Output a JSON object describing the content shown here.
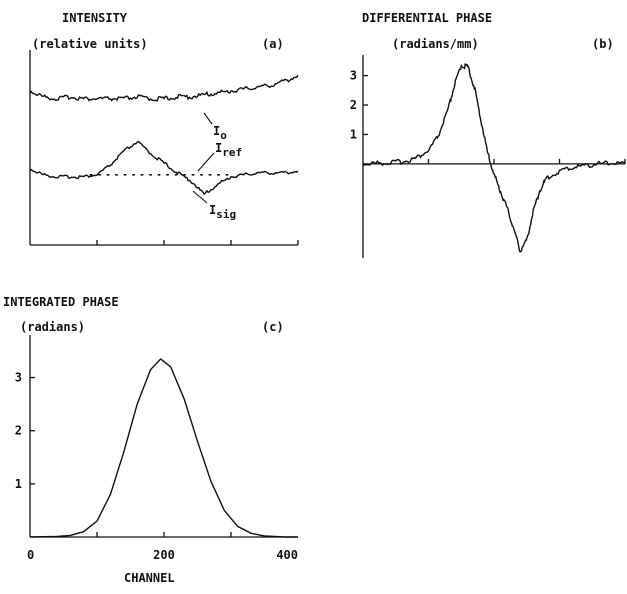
{
  "chart_data": [
    {
      "id": "a",
      "type": "line",
      "title": "INTENSITY",
      "ylabel": "(relative units)",
      "panel_label": "(a)",
      "x_ticks": [
        100,
        200,
        300,
        400
      ],
      "xlim": [
        0,
        400
      ],
      "ylim": [
        0,
        1
      ],
      "series": [
        {
          "name": "I",
          "subscript": "o",
          "x": [
            0,
            20,
            40,
            60,
            80,
            100,
            120,
            140,
            160,
            180,
            200,
            220,
            240,
            260,
            280,
            300,
            320,
            340,
            360,
            380,
            400
          ],
          "y": [
            0.79,
            0.76,
            0.75,
            0.76,
            0.75,
            0.75,
            0.75,
            0.75,
            0.76,
            0.75,
            0.75,
            0.76,
            0.76,
            0.77,
            0.78,
            0.79,
            0.8,
            0.81,
            0.82,
            0.84,
            0.87
          ]
        },
        {
          "name": "I",
          "subscript": "sig",
          "x": [
            0,
            20,
            40,
            60,
            80,
            100,
            120,
            140,
            160,
            180,
            200,
            220,
            240,
            260,
            280,
            300,
            320,
            340,
            360,
            380,
            400
          ],
          "y": [
            0.39,
            0.36,
            0.35,
            0.35,
            0.35,
            0.36,
            0.41,
            0.48,
            0.53,
            0.47,
            0.42,
            0.37,
            0.33,
            0.26,
            0.31,
            0.35,
            0.36,
            0.37,
            0.37,
            0.37,
            0.38
          ]
        },
        {
          "name": "I",
          "subscript": "ref",
          "style": "dotted",
          "x": [
            90,
            120,
            140,
            160,
            180,
            200,
            220,
            240,
            260,
            280,
            300
          ],
          "y": [
            0.36,
            0.36,
            0.36,
            0.36,
            0.36,
            0.36,
            0.36,
            0.36,
            0.36,
            0.36,
            0.36
          ]
        }
      ]
    },
    {
      "id": "b",
      "type": "line",
      "title": "DIFFERENTIAL PHASE",
      "ylabel": "(radians/mm)",
      "panel_label": "(b)",
      "y_ticks": [
        1,
        2,
        3
      ],
      "x_ticks": [
        100,
        200,
        300,
        400
      ],
      "xlim": [
        0,
        400
      ],
      "ylim": [
        -3.2,
        3.7
      ],
      "series": [
        {
          "name": "",
          "x": [
            0,
            20,
            40,
            60,
            80,
            100,
            115,
            130,
            140,
            150,
            160,
            170,
            180,
            190,
            200,
            210,
            220,
            230,
            240,
            250,
            260,
            270,
            280,
            300,
            320,
            340,
            360,
            380,
            400
          ],
          "y": [
            0,
            0.02,
            0.04,
            0.08,
            0.18,
            0.45,
            0.95,
            1.85,
            2.7,
            3.35,
            3.3,
            2.6,
            1.5,
            0.4,
            -0.35,
            -0.95,
            -1.5,
            -2.2,
            -2.95,
            -2.6,
            -1.6,
            -0.9,
            -0.5,
            -0.25,
            -0.12,
            -0.05,
            0,
            0.03,
            0
          ]
        }
      ]
    },
    {
      "id": "c",
      "type": "line",
      "title": "INTEGRATED PHASE",
      "ylabel": "(radians)",
      "panel_label": "(c)",
      "xlabel": "CHANNEL",
      "x_ticks": [
        0,
        200,
        400
      ],
      "x_tick_labels": [
        "0",
        "200",
        "400"
      ],
      "y_ticks": [
        1,
        2,
        3
      ],
      "xlim": [
        0,
        400
      ],
      "ylim": [
        0,
        3.8
      ],
      "series": [
        {
          "name": "",
          "x": [
            0,
            40,
            60,
            80,
            100,
            120,
            140,
            160,
            180,
            195,
            210,
            230,
            250,
            270,
            290,
            310,
            330,
            350,
            380,
            400
          ],
          "y": [
            0,
            0.01,
            0.03,
            0.1,
            0.3,
            0.8,
            1.6,
            2.5,
            3.15,
            3.35,
            3.2,
            2.6,
            1.8,
            1.05,
            0.5,
            0.2,
            0.07,
            0.02,
            0,
            0
          ]
        }
      ]
    }
  ]
}
